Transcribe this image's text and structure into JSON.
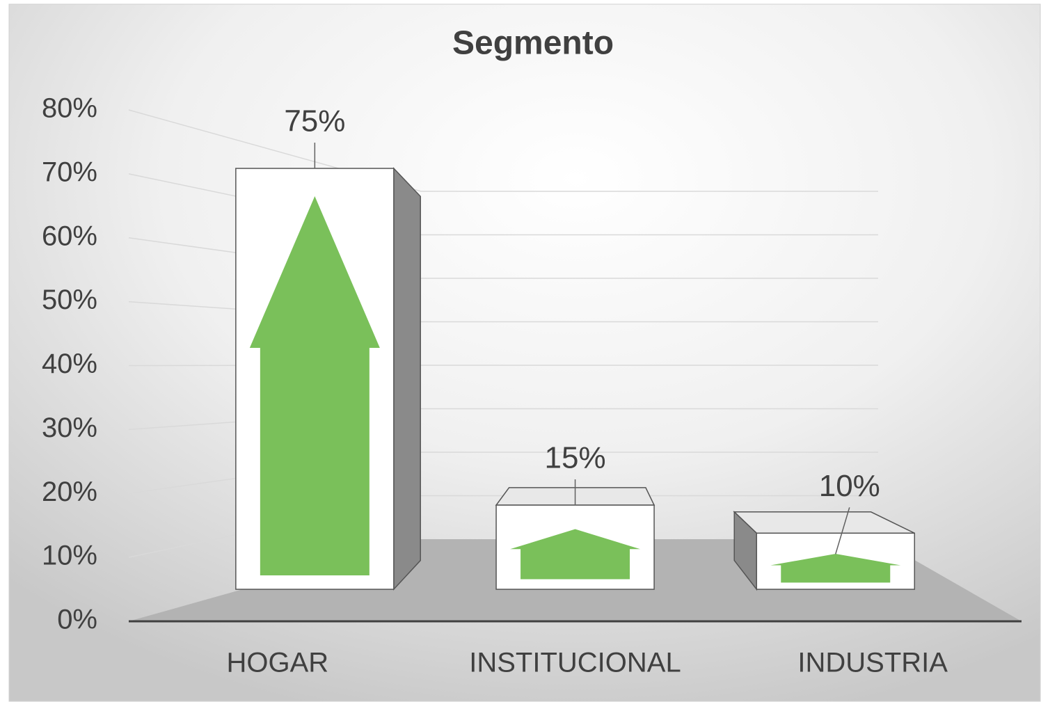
{
  "chart_data": {
    "type": "bar3d",
    "title": "Segmento",
    "categories": [
      "HOGAR",
      "INSTITUCIONAL",
      "INDUSTRIA"
    ],
    "values": [
      75,
      15,
      10
    ],
    "value_labels": [
      "75%",
      "15%",
      "10%"
    ],
    "color": "#7ac05a",
    "ylim": [
      0,
      80
    ],
    "yticks": [
      {
        "value": 0,
        "label": "0%"
      },
      {
        "value": 10,
        "label": "10%"
      },
      {
        "value": 20,
        "label": "20%"
      },
      {
        "value": 30,
        "label": "30%"
      },
      {
        "value": 40,
        "label": "40%"
      },
      {
        "value": 50,
        "label": "50%"
      },
      {
        "value": 60,
        "label": "60%"
      },
      {
        "value": 70,
        "label": "70%"
      },
      {
        "value": 80,
        "label": "80%"
      }
    ],
    "grid": true
  }
}
